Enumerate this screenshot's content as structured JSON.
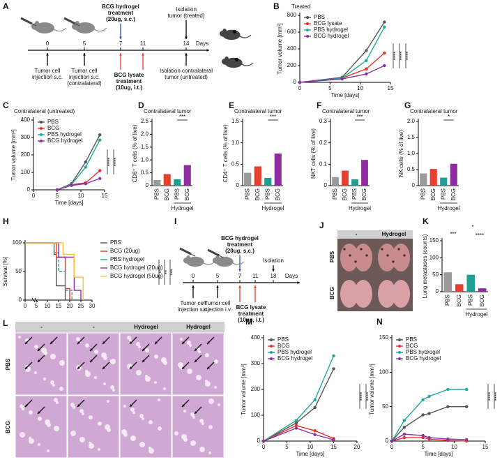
{
  "timeline_a": {
    "panel_label": "A",
    "treatment": [
      "BCG hydrogel",
      "treatment",
      "(20ug, s.c.)"
    ],
    "isolation": [
      "Isolation",
      "tumor (treated)"
    ],
    "days": [
      0,
      5,
      7,
      11,
      14
    ],
    "days_label": "Days",
    "events": [
      [
        "Tumor cell",
        "injection s.c."
      ],
      [
        "Tumor cell",
        "injection s.c.",
        "(contralateral)"
      ],
      [
        "Isolation contralateral",
        "tumor (untreated)"
      ]
    ],
    "lysate": [
      "BCG lysate",
      "treatment",
      "(10ug, i.t.)"
    ]
  },
  "timeline_i": {
    "panel_label": "I",
    "treatment": [
      "BCG hydrogel",
      "treatment",
      "(20ug, s.c.)"
    ],
    "isolation": [
      "Isolation"
    ],
    "days": [
      0,
      5,
      7,
      11,
      18
    ],
    "days_label": "Days",
    "events": [
      [
        "Tumor cell",
        "injection s.c."
      ],
      [
        "Tumor cell",
        "injection i.v."
      ]
    ],
    "lysate": [
      "BCG lysate",
      "treatment",
      "(10ug, i.t.)"
    ]
  },
  "lung_images": {
    "panel_label": "J",
    "columns": [
      "-",
      "Hydrogel"
    ],
    "rows": [
      "PBS",
      "BCG"
    ]
  },
  "histology": {
    "panel_label": "L",
    "columns": [
      "-",
      "-",
      "Hydrogel",
      "Hydrogel"
    ],
    "rows": [
      "PBS",
      "BCG"
    ]
  },
  "chart_data": [
    {
      "panel_label": "B",
      "type": "line",
      "title": "Treated",
      "xlabel": "Time [days]",
      "ylabel": "Tumor volume [mm³]",
      "x": [
        0,
        7,
        11,
        14
      ],
      "xlim": [
        0,
        15
      ],
      "xticks": [
        0,
        5,
        10,
        15
      ],
      "ylim": [
        0,
        800
      ],
      "yticks": [
        0,
        200,
        400,
        600,
        800
      ],
      "legend": "upper left",
      "series": [
        {
          "name": "PBS",
          "color": "#555555",
          "values": [
            0,
            60,
            380,
            720
          ]
        },
        {
          "name": "BCG lysate",
          "color": "#e8312b",
          "values": [
            0,
            50,
            160,
            350
          ]
        },
        {
          "name": "PBS hydrogel",
          "color": "#1fa89e",
          "values": [
            0,
            50,
            260,
            660
          ]
        },
        {
          "name": "BCG hydrogel",
          "color": "#8b2fa0",
          "values": [
            0,
            40,
            100,
            200
          ]
        }
      ],
      "annotations": [
        "****",
        "****",
        "****"
      ]
    },
    {
      "panel_label": "C",
      "type": "line",
      "title": "Contralateral (untreated)",
      "xlabel": "Time [days]",
      "ylabel": "Tumor volume [mm³]",
      "x": [
        5,
        8,
        11,
        14
      ],
      "xlim": [
        0,
        15
      ],
      "xticks": [
        0,
        5,
        10,
        15
      ],
      "ylim": [
        0,
        400
      ],
      "yticks": [
        0,
        100,
        200,
        300,
        400
      ],
      "legend": "upper left",
      "series": [
        {
          "name": "PBS",
          "color": "#555555",
          "values": [
            0,
            35,
            160,
            315
          ]
        },
        {
          "name": "BCG",
          "color": "#e8312b",
          "values": [
            0,
            30,
            40,
            110
          ]
        },
        {
          "name": "PBS hydrogel",
          "color": "#1fa89e",
          "values": [
            0,
            30,
            130,
            285
          ]
        },
        {
          "name": "BCG hydrogel",
          "color": "#8b2fa0",
          "values": [
            0,
            25,
            35,
            65
          ]
        }
      ],
      "annotations": [
        "****",
        "****"
      ]
    },
    {
      "panel_label": "D",
      "type": "bar",
      "title": "Contralateral tumor",
      "ylabel": "CD8⁺ T cells (% of live)",
      "categories": [
        "PBS",
        "BCG",
        "PBS",
        "BCG"
      ],
      "values": [
        0.22,
        0.45,
        0.25,
        0.8
      ],
      "colors": [
        "#9a9a9a",
        "#e8402f",
        "#1f9e94",
        "#8e2d9f"
      ],
      "ylim": [
        0,
        2.5
      ],
      "yticks": [
        0,
        0.5,
        {
          "value": 1,
          "label": "1.0"
        },
        1.5,
        {
          "value": 2,
          "label": "2.0"
        },
        2.5
      ],
      "group_label": "Hydrogel",
      "annotations": [
        "***"
      ]
    },
    {
      "panel_label": "E",
      "type": "bar",
      "title": "Contralateral tumor",
      "ylabel": "CD4⁺ T cells (% of live)",
      "categories": [
        "PBS",
        "BCG",
        "PBS",
        "BCG"
      ],
      "values": [
        0.3,
        0.45,
        0.18,
        0.75
      ],
      "colors": [
        "#9a9a9a",
        "#e8402f",
        "#1f9e94",
        "#8e2d9f"
      ],
      "ylim": [
        0,
        1.5
      ],
      "yticks": [
        0,
        0.5,
        {
          "value": 1,
          "label": "1.0"
        },
        1.5
      ],
      "group_label": "Hydrogel",
      "annotations": [
        "***"
      ]
    },
    {
      "panel_label": "F",
      "type": "bar",
      "title": "Contralateral tumor",
      "ylabel": "NKT cells (% of live)",
      "categories": [
        "PBS",
        "BCG",
        "PBS",
        "BCG"
      ],
      "values": [
        0.04,
        0.07,
        0.03,
        0.12
      ],
      "colors": [
        "#9a9a9a",
        "#e8402f",
        "#1f9e94",
        "#8e2d9f"
      ],
      "ylim": [
        0,
        0.3
      ],
      "yticks": [
        0,
        0.1,
        0.2,
        0.3
      ],
      "group_label": "Hydrogel",
      "annotations": [
        "***"
      ]
    },
    {
      "panel_label": "G",
      "type": "bar",
      "title": "Contralateral tumor",
      "ylabel": "NK cells (% of live)",
      "categories": [
        "PBS",
        "BCG",
        "PBS",
        "BCG"
      ],
      "values": [
        0.38,
        0.52,
        0.25,
        0.68
      ],
      "colors": [
        "#9a9a9a",
        "#e8402f",
        "#1f9e94",
        "#8e2d9f"
      ],
      "ylim": [
        0,
        2
      ],
      "yticks": [
        0,
        0.5,
        {
          "value": 1,
          "label": "1.0"
        },
        1.5,
        {
          "value": 2,
          "label": "2.0"
        }
      ],
      "group_label": "Hydrogel",
      "annotations": [
        "*"
      ]
    },
    {
      "panel_label": "H",
      "type": "line",
      "ylabel": "Survival [%]",
      "xlim": [
        0,
        30
      ],
      "xticks": [
        0,
        5,
        10,
        15,
        20,
        25,
        30
      ],
      "ylim": [
        0,
        100
      ],
      "yticks": [
        0,
        50,
        100
      ],
      "legend": "right",
      "markers": false,
      "series": [
        {
          "name": "PBS",
          "color": "#555555",
          "x": [
            0,
            13,
            13,
            14,
            14,
            18,
            18
          ],
          "values": [
            100,
            100,
            80,
            80,
            25,
            25,
            0
          ]
        },
        {
          "name": "BCG (20ug)",
          "color": "#e8312b",
          "x": [
            0,
            14,
            14,
            18,
            18,
            20,
            20
          ],
          "values": [
            100,
            100,
            75,
            75,
            20,
            20,
            0
          ]
        },
        {
          "name": "PBS hydrogel",
          "color": "#1fa89e",
          "dashed": true,
          "x": [
            0,
            13,
            13,
            15,
            15,
            18,
            18,
            21,
            21
          ],
          "values": [
            100,
            100,
            83,
            83,
            50,
            50,
            17,
            17,
            0
          ]
        },
        {
          "name": "BCG hydrogel (20ug)",
          "color": "#8b2fa0",
          "x": [
            0,
            15,
            15,
            22,
            22,
            25,
            25
          ],
          "values": [
            100,
            100,
            75,
            75,
            17,
            17,
            0
          ]
        },
        {
          "name": "BCG hydrogel (50ug)",
          "color": "#f5c242",
          "x": [
            0,
            17,
            17,
            22,
            22,
            26,
            26
          ],
          "values": [
            100,
            100,
            80,
            80,
            40,
            40,
            0
          ]
        }
      ],
      "annotations": [
        "*",
        "**",
        "***"
      ]
    },
    {
      "panel_label": "K",
      "type": "bar",
      "ylabel": "Lung metastases (counts)",
      "categories": [
        "PBS",
        "BCG",
        "PBS",
        "BCG"
      ],
      "values": [
        57,
        22,
        50,
        10
      ],
      "colors": [
        "#9a9a9a",
        "#e8402f",
        "#1f9e94",
        "#8e2d9f"
      ],
      "ylim": [
        0,
        150
      ],
      "yticks": [
        0,
        50,
        100,
        150
      ],
      "group_label": "Hydrogel",
      "annotations": [
        "***",
        "*",
        "****"
      ]
    },
    {
      "panel_label": "M",
      "type": "line",
      "xlabel": "Time [days]",
      "ylabel": "Tumor volume [mm³]",
      "x": [
        0,
        7,
        11,
        15
      ],
      "xlim": [
        0,
        20
      ],
      "xticks": [
        0,
        5,
        10,
        15,
        20
      ],
      "ylim": [
        0,
        400
      ],
      "yticks": [
        0,
        100,
        200,
        300,
        400
      ],
      "legend": "upper left",
      "series": [
        {
          "name": "PBS",
          "color": "#555555",
          "values": [
            0,
            70,
            130,
            280
          ]
        },
        {
          "name": "BCG",
          "color": "#e8312b",
          "values": [
            0,
            60,
            40,
            10
          ]
        },
        {
          "name": "PBS hydrogel",
          "color": "#1fa89e",
          "values": [
            0,
            80,
            160,
            330
          ]
        },
        {
          "name": "BCG hydrogel",
          "color": "#8b2fa0",
          "values": [
            0,
            50,
            25,
            5
          ]
        }
      ],
      "annotations": [
        "****",
        "****"
      ]
    },
    {
      "panel_label": "N",
      "type": "line",
      "xlabel": "Time [days]",
      "ylabel": "Tumor volume [mm³]",
      "x": [
        0,
        2,
        5,
        6,
        9,
        12
      ],
      "xlim": [
        0,
        15
      ],
      "xticks": [
        0,
        5,
        10,
        15
      ],
      "ylim": [
        0,
        150
      ],
      "yticks": [
        0,
        50,
        100,
        150
      ],
      "legend": "upper left",
      "series": [
        {
          "name": "PBS",
          "color": "#555555",
          "values": [
            0,
            20,
            38,
            40,
            50,
            50
          ]
        },
        {
          "name": "BCG",
          "color": "#e8312b",
          "values": [
            0,
            5,
            5,
            3,
            1,
            0
          ]
        },
        {
          "name": "PBS hydrogel",
          "color": "#1fa89e",
          "values": [
            0,
            30,
            60,
            65,
            75,
            75
          ]
        },
        {
          "name": "BCG hydrogel",
          "color": "#8b2fa0",
          "values": [
            0,
            10,
            8,
            5,
            3,
            2
          ]
        }
      ],
      "annotations": [
        "****",
        "****"
      ]
    }
  ]
}
